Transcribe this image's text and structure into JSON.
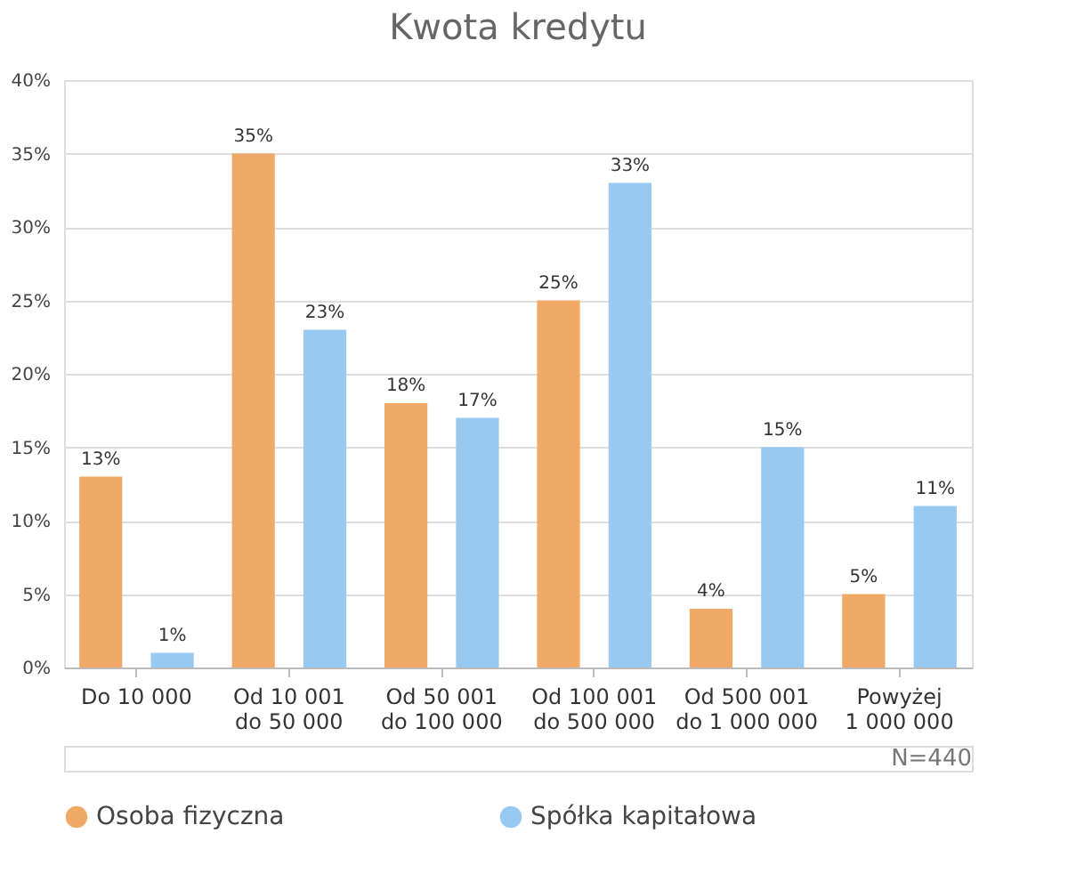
{
  "chart_data": {
    "type": "bar",
    "title": "Kwota kredytu",
    "categories": [
      "Do 10 000",
      "Od 10 001\ndo 50 000",
      "Od 50 001\ndo 100 000",
      "Od 100 001\ndo 500 000",
      "Od 500 001\ndo 1 000 000",
      "Powyżej\n1 000 000"
    ],
    "series": [
      {
        "name": "Osoba fizyczna",
        "color": "#f0a966",
        "values": [
          13,
          35,
          18,
          25,
          4,
          5
        ],
        "value_labels": [
          "13%",
          "35%",
          "18%",
          "25%",
          "4%",
          "5%"
        ]
      },
      {
        "name": "Spółka kapitałowa",
        "color": "#98c9f1",
        "values": [
          1,
          23,
          17,
          33,
          15,
          11
        ],
        "value_labels": [
          "1%",
          "23%",
          "17%",
          "33%",
          "15%",
          "11%"
        ]
      }
    ],
    "ylim": [
      0,
      40
    ],
    "yticks": [
      {
        "value": 0,
        "label": "0%"
      },
      {
        "value": 5,
        "label": "5%"
      },
      {
        "value": 10,
        "label": "10%"
      },
      {
        "value": 15,
        "label": "15%"
      },
      {
        "value": 20,
        "label": "20%"
      },
      {
        "value": 25,
        "label": "25%"
      },
      {
        "value": 30,
        "label": "30%"
      },
      {
        "value": 35,
        "label": "35%"
      },
      {
        "value": 40,
        "label": "40%"
      }
    ],
    "grid": "y",
    "legend": "bottom",
    "annotations": [
      "N=440"
    ]
  }
}
